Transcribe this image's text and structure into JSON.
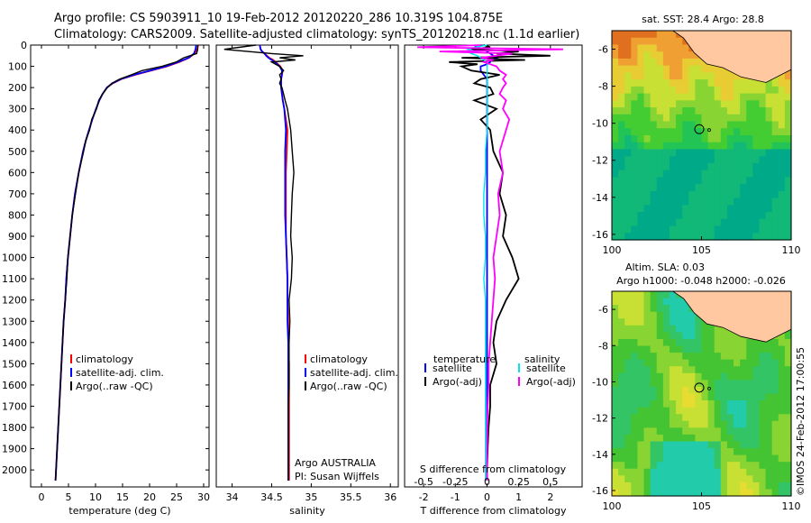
{
  "header": {
    "line1": "Argo profile: CS 5903911_10 19-Feb-2012 20120220_286 10.319S 104.875E",
    "line2": "Climatology: CARS2009. Satellite-adjusted climatology: synTS_20120218.nc (1.1d earlier)"
  },
  "credit": "©IMOS 24-Feb-2012 17:00:55",
  "colors": {
    "clim": "#ff0000",
    "sat": "#0000ff",
    "argo": "#000000",
    "sal_sat": "#00e5ee",
    "sal_argo": "#ff00ff",
    "land": "#ffc8a0"
  },
  "chart_data": [
    {
      "id": "temperature",
      "type": "line",
      "xlabel": "temperature (deg C)",
      "xlim": [
        -2,
        31
      ],
      "ylim": [
        2080,
        0
      ],
      "xticks": [
        0,
        5,
        10,
        15,
        20,
        25,
        30
      ],
      "yticks": [
        0,
        100,
        200,
        300,
        400,
        500,
        600,
        700,
        800,
        900,
        1000,
        1100,
        1200,
        1300,
        1400,
        1500,
        1600,
        1700,
        1800,
        1900,
        2000
      ],
      "legend": [
        "climatology",
        "satellite-adj. clim.",
        "Argo(..raw -QC)"
      ],
      "depth": [
        0,
        20,
        40,
        60,
        80,
        100,
        120,
        140,
        160,
        180,
        200,
        230,
        260,
        300,
        350,
        400,
        450,
        500,
        600,
        700,
        800,
        900,
        1000,
        1100,
        1200,
        1300,
        1400,
        1500,
        1600,
        1700,
        1800,
        1900,
        2000,
        2050
      ],
      "series": [
        {
          "name": "climatology",
          "values": [
            29,
            28.8,
            28.3,
            27.3,
            25.5,
            23.2,
            20.3,
            17.3,
            14.8,
            13.2,
            12.1,
            11.3,
            10.7,
            10.1,
            9.4,
            8.8,
            8.2,
            7.7,
            6.9,
            6.2,
            5.7,
            5.3,
            4.9,
            4.6,
            4.4,
            4.1,
            3.9,
            3.7,
            3.5,
            3.3,
            3.1,
            2.9,
            2.7,
            2.6
          ]
        },
        {
          "name": "satellite-adj. clim.",
          "values": [
            28.6,
            28.5,
            28.2,
            27.2,
            25.3,
            23.0,
            20.1,
            17.1,
            14.7,
            13.1,
            12.1,
            11.3,
            10.7,
            10.1,
            9.4,
            8.8,
            8.2,
            7.7,
            6.9,
            6.2,
            5.7,
            5.3,
            4.9,
            4.6,
            4.4,
            4.1,
            3.9,
            3.7,
            3.5,
            3.3,
            3.1,
            2.9,
            2.7,
            2.6
          ]
        },
        {
          "name": "Argo(..raw -QC)",
          "values": [
            28.9,
            28.9,
            28.7,
            26.3,
            24.9,
            22.3,
            18.6,
            16.6,
            14.5,
            13.0,
            12.2,
            11.3,
            10.6,
            10.2,
            9.3,
            8.9,
            8.2,
            7.8,
            6.9,
            6.3,
            5.7,
            5.3,
            4.9,
            4.7,
            4.4,
            4.1,
            3.9,
            3.7,
            3.5,
            3.3,
            3.1,
            2.9,
            2.7,
            2.6
          ]
        }
      ]
    },
    {
      "id": "salinity",
      "type": "line",
      "xlabel": "salinity",
      "xlim": [
        33.8,
        36.1
      ],
      "ylim": [
        2080,
        0
      ],
      "xticks": [
        34,
        34.5,
        35,
        35.5,
        36
      ],
      "legend": [
        "climatology",
        "satellite-adj. clim.",
        "Argo(..raw -QC)"
      ],
      "note": [
        "Argo AUSTRALIA",
        "PI: Susan Wijffels"
      ],
      "depth": [
        0,
        20,
        30,
        40,
        50,
        60,
        70,
        80,
        90,
        100,
        120,
        140,
        160,
        180,
        200,
        230,
        260,
        300,
        350,
        400,
        500,
        600,
        700,
        800,
        900,
        1000,
        1100,
        1200,
        1300,
        1400,
        1500,
        1600,
        1700,
        1800,
        1900,
        2000,
        2050
      ],
      "series": [
        {
          "name": "climatology",
          "values": [
            34.35,
            34.36,
            34.38,
            34.41,
            34.44,
            34.47,
            34.52,
            34.55,
            34.58,
            34.61,
            34.64,
            34.63,
            34.62,
            34.62,
            34.62,
            34.63,
            34.64,
            34.66,
            34.68,
            34.7,
            34.69,
            34.68,
            34.68,
            34.68,
            34.68,
            34.69,
            34.7,
            34.7,
            34.71,
            34.71,
            34.72,
            34.72,
            34.72,
            34.72,
            34.72,
            34.72,
            34.72
          ]
        },
        {
          "name": "satellite-adj. clim.",
          "values": [
            34.35,
            34.36,
            34.38,
            34.41,
            34.43,
            34.46,
            34.5,
            34.54,
            34.57,
            34.6,
            34.63,
            34.63,
            34.62,
            34.62,
            34.62,
            34.63,
            34.64,
            34.66,
            34.67,
            34.68,
            34.67,
            34.67,
            34.67,
            34.67,
            34.68,
            34.69,
            34.7,
            34.7,
            34.7,
            34.71,
            34.71,
            34.71,
            34.71,
            34.71,
            34.71,
            34.71,
            34.71
          ]
        },
        {
          "name": "Argo(..raw -QC)",
          "values": [
            34.3,
            33.9,
            34.2,
            34.5,
            34.9,
            34.6,
            34.8,
            34.5,
            34.55,
            34.6,
            34.65,
            34.6,
            34.62,
            34.6,
            34.63,
            34.65,
            34.67,
            34.7,
            34.72,
            34.74,
            34.76,
            34.78,
            34.76,
            34.75,
            34.74,
            34.76,
            34.75,
            34.72,
            34.73,
            34.72,
            34.72,
            34.72,
            34.71,
            34.71,
            34.71,
            34.71,
            34.71
          ]
        }
      ]
    },
    {
      "id": "difference",
      "type": "line",
      "xlabel": "T difference from climatology",
      "xlabel_top": "S difference from climatology",
      "xlim": [
        -2.6,
        3.0
      ],
      "ylim": [
        2080,
        0
      ],
      "xticks": [
        -2,
        -1,
        0,
        1,
        2
      ],
      "s_ticks": [
        {
          "label": "-0.5",
          "t": -2
        },
        {
          "label": "-0.25",
          "t": -1
        },
        {
          "label": "0",
          "t": 0
        },
        {
          "label": "0.25",
          "t": 1
        },
        {
          "label": "0.5",
          "t": 2
        }
      ],
      "legend_headers": [
        "temperature",
        "salinity"
      ],
      "legend": [
        "satellite",
        "Argo(-adj)",
        "satellite",
        "Argo(-adj)"
      ],
      "depth": [
        0,
        10,
        20,
        30,
        40,
        50,
        60,
        70,
        80,
        90,
        100,
        120,
        140,
        160,
        180,
        200,
        230,
        260,
        300,
        350,
        400,
        500,
        600,
        700,
        800,
        900,
        1000,
        1100,
        1200,
        1300,
        1400,
        1500,
        1600,
        1700,
        1800,
        1900,
        2000,
        2050
      ],
      "series": [
        {
          "name": "temperature satellite",
          "values": [
            -0.4,
            -0.3,
            -0.1,
            0,
            0.1,
            0.2,
            0.3,
            0.1,
            0.1,
            0,
            -0.2,
            -0.2,
            -0.1,
            0,
            0,
            0,
            0,
            0,
            0,
            0,
            0,
            0,
            0,
            0,
            0,
            0,
            0,
            0,
            0,
            0,
            0,
            0,
            0,
            0,
            0,
            0,
            0,
            0
          ]
        },
        {
          "name": "temperature Argo(-adj)",
          "values": [
            -0.1,
            0.1,
            -0.5,
            1.0,
            0.3,
            2.0,
            -0.8,
            1.2,
            -1.2,
            -0.3,
            -0.8,
            -0.5,
            0.4,
            -0.2,
            -0.4,
            0.1,
            0.2,
            -0.4,
            0.3,
            -0.2,
            0.1,
            0.2,
            0.5,
            0.4,
            0.6,
            0.5,
            0.8,
            1.0,
            0.6,
            0.3,
            0.2,
            0.3,
            0.1,
            0.1,
            0.05,
            0.02,
            0,
            0
          ]
        },
        {
          "name": "salinity satellite",
          "values": [
            0,
            -0.4,
            -0.6,
            -0.3,
            -0.5,
            -0.3,
            -0.2,
            -0.1,
            0,
            0,
            0,
            0,
            0,
            0,
            0,
            0,
            0,
            0,
            0,
            0,
            0,
            -0.05,
            -0.05,
            -0.1,
            -0.1,
            -0.05,
            -0.05,
            -0.1,
            -0.05,
            -0.05,
            -0.05,
            -0.05,
            -0.05,
            -0.05,
            -0.05,
            -0.05,
            -0.05,
            -0.05
          ]
        },
        {
          "name": "salinity Argo(-adj)",
          "values": [
            -0.2,
            -2.2,
            2.4,
            -1.5,
            0.8,
            0.3,
            -0.2,
            0.2,
            -0.1,
            0.1,
            0.3,
            0.4,
            0.6,
            0.5,
            0.6,
            0.5,
            0.4,
            0.6,
            0.5,
            0.7,
            0.6,
            0.4,
            0.5,
            0.35,
            0.4,
            0.3,
            0.2,
            0.25,
            0.2,
            0.15,
            0.1,
            0.05,
            0.05,
            0.02,
            0.01,
            0,
            0,
            0
          ]
        }
      ]
    },
    {
      "id": "sst_map",
      "type": "heatmap",
      "title": "sat. SST: 28.4  Argo: 28.8",
      "xlim": [
        100,
        110
      ],
      "ylim": [
        -16.3,
        -5
      ],
      "xticks": [
        100,
        105,
        110
      ],
      "yticks": [
        -6,
        -8,
        -10,
        -12,
        -14,
        -16
      ],
      "marker": {
        "lon": 104.875,
        "lat": -10.319
      },
      "colors": [
        "#00aa88",
        "#11b877",
        "#22c455",
        "#44cc33",
        "#88d433",
        "#c8e033",
        "#e8cc33",
        "#f0a033",
        "#e07020"
      ]
    },
    {
      "id": "sla_map",
      "type": "heatmap",
      "title": "Altim. SLA: 0.03",
      "subtitle": "Argo h1000: -0.048 h2000: -0.026",
      "xlim": [
        100,
        110
      ],
      "ylim": [
        -16.3,
        -5
      ],
      "xticks": [
        100,
        105,
        110
      ],
      "yticks": [
        -6,
        -8,
        -10,
        -12,
        -14,
        -16
      ],
      "marker": {
        "lon": 104.875,
        "lat": -10.319
      },
      "colors": [
        "#22ccaa",
        "#33c466",
        "#44c433",
        "#88d433",
        "#c8e033",
        "#e8dc33"
      ]
    }
  ]
}
